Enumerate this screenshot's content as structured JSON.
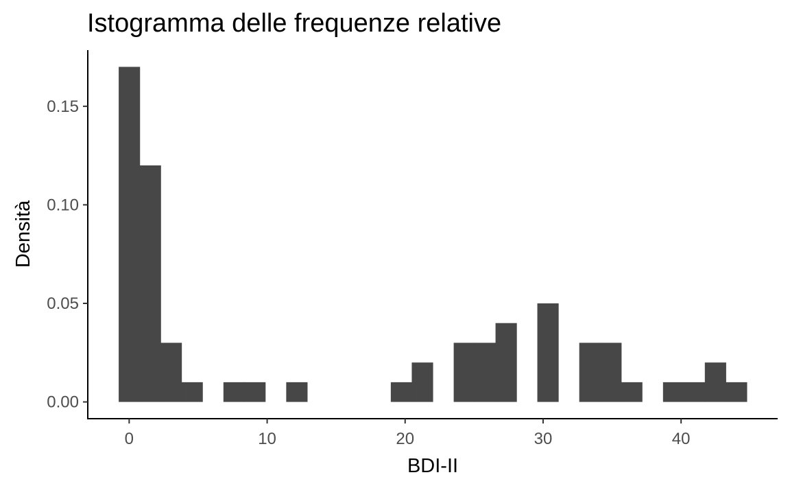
{
  "chart_data": {
    "type": "bar",
    "title": "Istogramma delle frequenze relative",
    "xlabel": "BDI-II",
    "ylabel": "Densità",
    "bin_width": 1.517,
    "bins": [
      {
        "x": 0.0,
        "density": 0.17
      },
      {
        "x": 1.52,
        "density": 0.12
      },
      {
        "x": 3.03,
        "density": 0.03
      },
      {
        "x": 4.55,
        "density": 0.01
      },
      {
        "x": 7.59,
        "density": 0.01
      },
      {
        "x": 9.1,
        "density": 0.01
      },
      {
        "x": 12.14,
        "density": 0.01
      },
      {
        "x": 19.72,
        "density": 0.01
      },
      {
        "x": 21.24,
        "density": 0.02
      },
      {
        "x": 24.28,
        "density": 0.03
      },
      {
        "x": 25.79,
        "density": 0.03
      },
      {
        "x": 27.31,
        "density": 0.04
      },
      {
        "x": 30.34,
        "density": 0.05
      },
      {
        "x": 33.38,
        "density": 0.03
      },
      {
        "x": 34.9,
        "density": 0.03
      },
      {
        "x": 36.41,
        "density": 0.01
      },
      {
        "x": 39.45,
        "density": 0.01
      },
      {
        "x": 40.97,
        "density": 0.01
      },
      {
        "x": 42.48,
        "density": 0.02
      },
      {
        "x": 44.0,
        "density": 0.01
      }
    ],
    "xlim": [
      -3.0,
      47.0
    ],
    "ylim": [
      -0.0085,
      0.1785
    ],
    "x_ticks": [
      0,
      10,
      20,
      30,
      40
    ],
    "x_tick_labels": [
      "0",
      "10",
      "20",
      "30",
      "40"
    ],
    "y_ticks": [
      0.0,
      0.05,
      0.1,
      0.15
    ],
    "y_tick_labels": [
      "0.00",
      "0.05",
      "0.10",
      "0.15"
    ],
    "bar_color": "#474747",
    "grid": false,
    "legend": "none"
  }
}
